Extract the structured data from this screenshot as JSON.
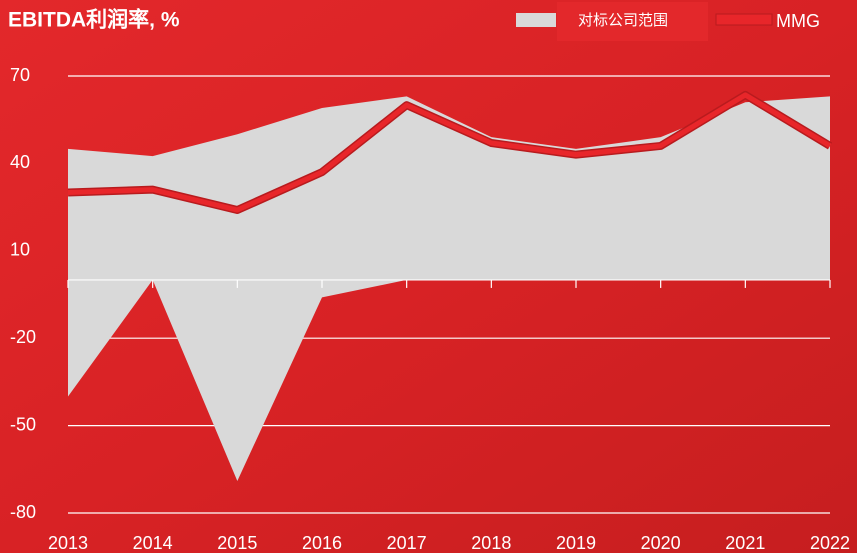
{
  "chart_data": {
    "type": "line",
    "title": "EBITDA利润率, %",
    "categories": [
      "2013",
      "2014",
      "2015",
      "2016",
      "2017",
      "2018",
      "2019",
      "2020",
      "2021",
      "2022"
    ],
    "series": [
      {
        "name": "对标公司范围",
        "color": "#d9d9d9",
        "kind": "range",
        "upper": [
          45,
          42.5,
          50,
          59,
          63,
          49,
          45,
          49,
          61,
          63
        ],
        "lower": [
          -40,
          0,
          -69,
          -6,
          0,
          0,
          0,
          0,
          0,
          0
        ]
      },
      {
        "name": "MMG",
        "color": "#e8262a",
        "kind": "line",
        "values": [
          30,
          31,
          24,
          37,
          60,
          47,
          43,
          46,
          63.5,
          46
        ]
      }
    ],
    "ylim": [
      -80,
      70
    ],
    "yticks": [
      70,
      40,
      10,
      -20,
      -50,
      -80
    ],
    "grid": true,
    "legend": "top-right"
  }
}
